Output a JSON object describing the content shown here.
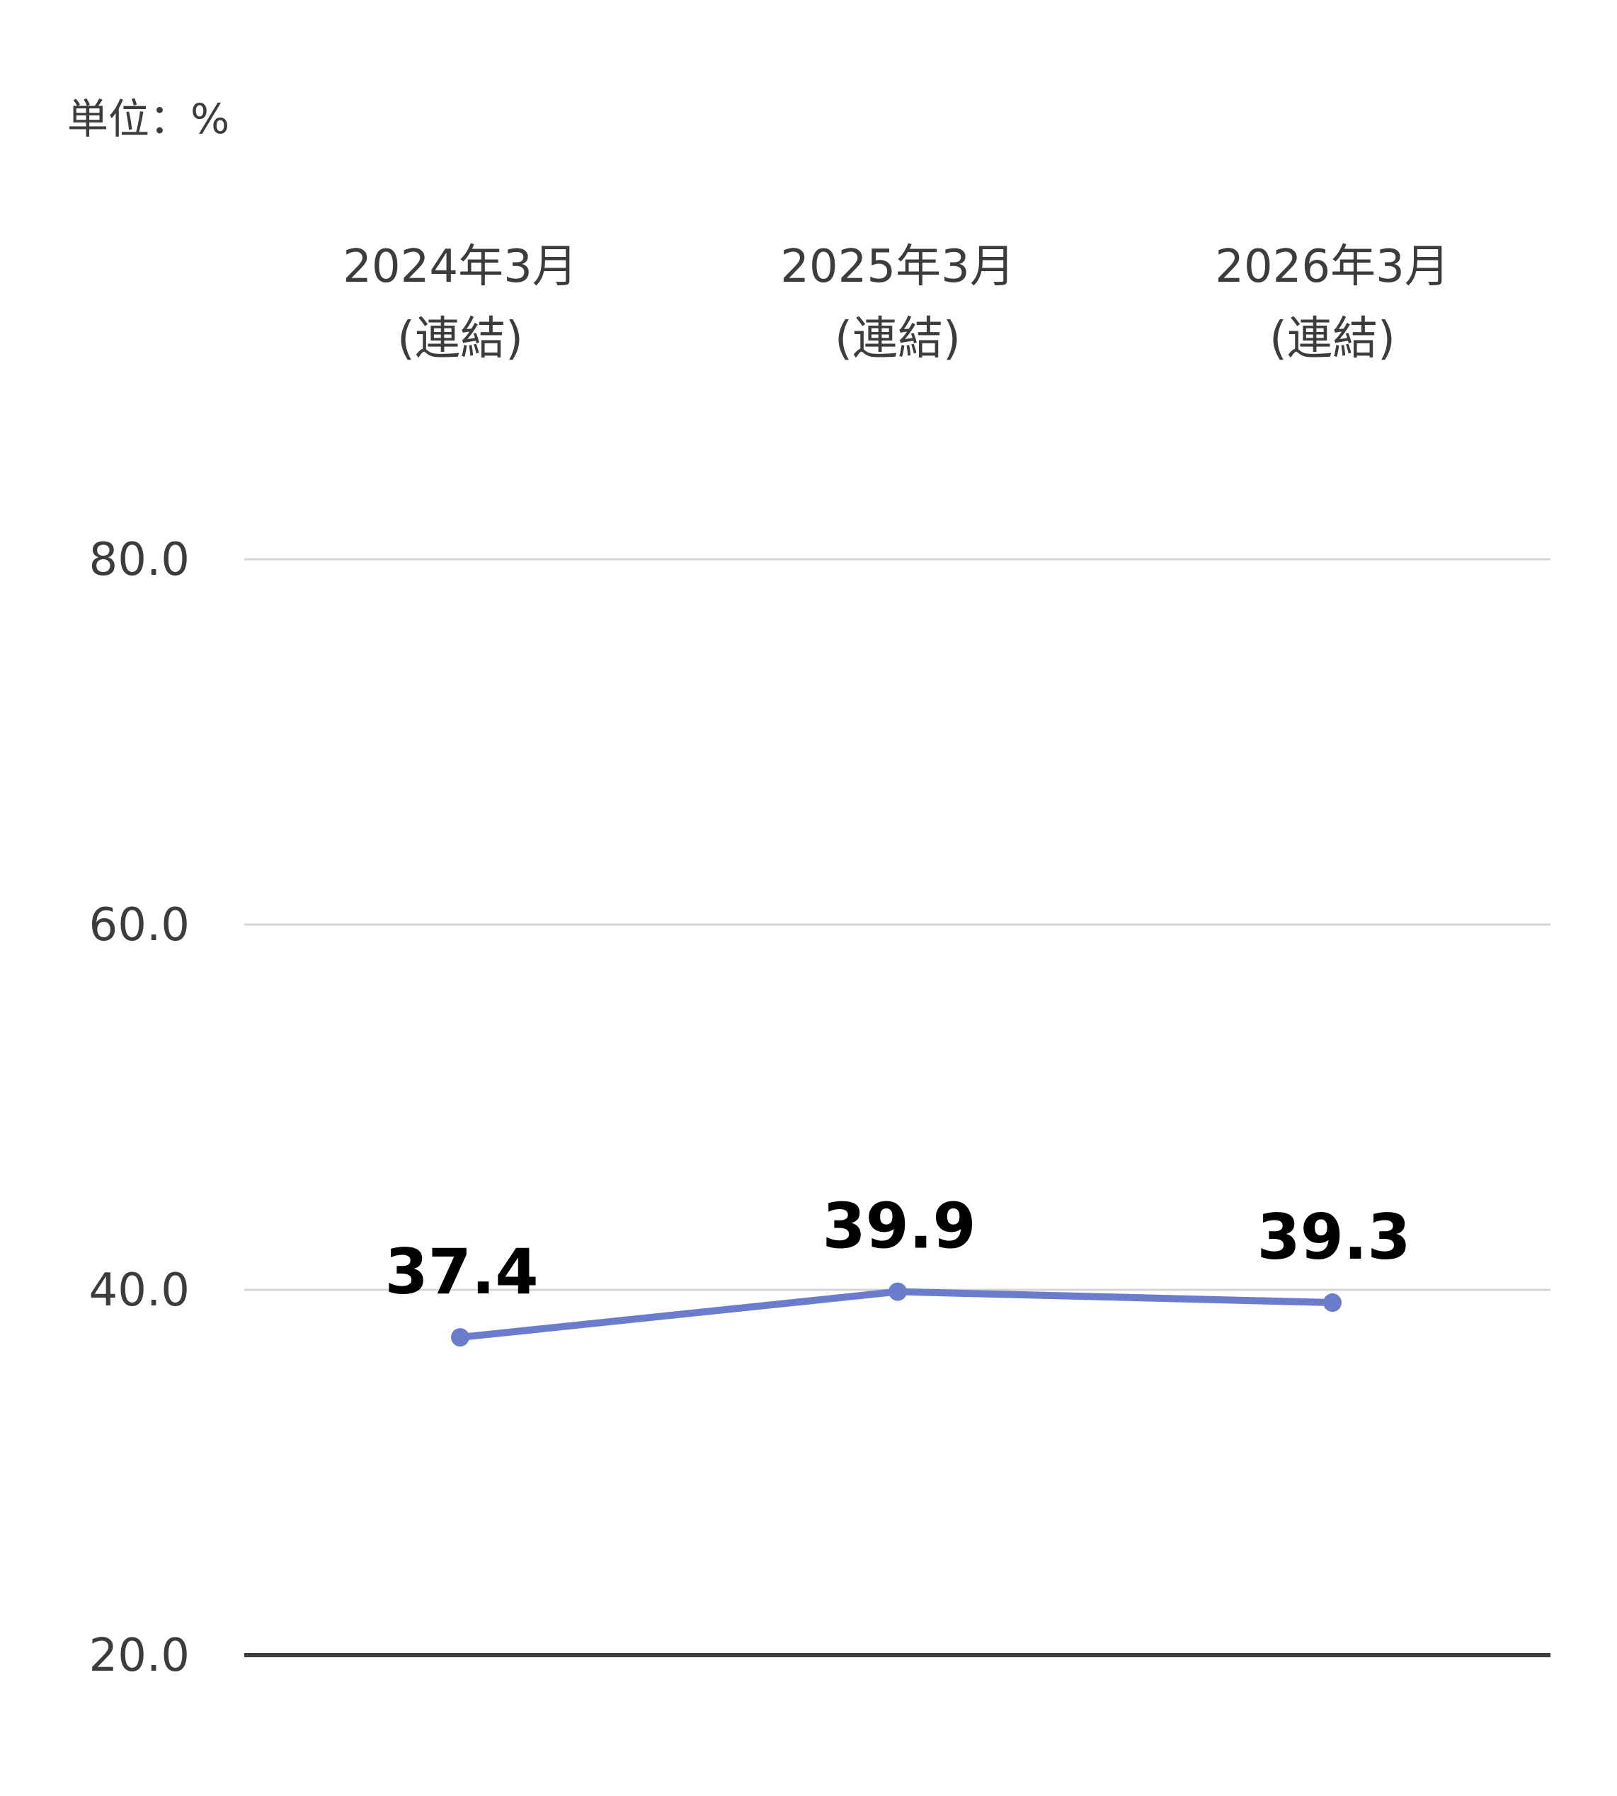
{
  "chart_data": {
    "type": "line",
    "unit_label": "単位：%",
    "categories": [
      [
        "2024年3月",
        "(連結)"
      ],
      [
        "2025年3月",
        "(連結)"
      ],
      [
        "2026年3月",
        "(連結)"
      ]
    ],
    "series": [
      {
        "values": [
          37.4,
          39.9,
          39.3
        ],
        "color": "#6b7ccc"
      }
    ],
    "data_labels": [
      "37.4",
      "39.9",
      "39.3"
    ],
    "y_ticks": [
      "20.0",
      "40.0",
      "60.0",
      "80.0"
    ],
    "ylim": [
      20,
      80
    ],
    "grid": true,
    "category_labels_position": "top",
    "legend": "none"
  }
}
